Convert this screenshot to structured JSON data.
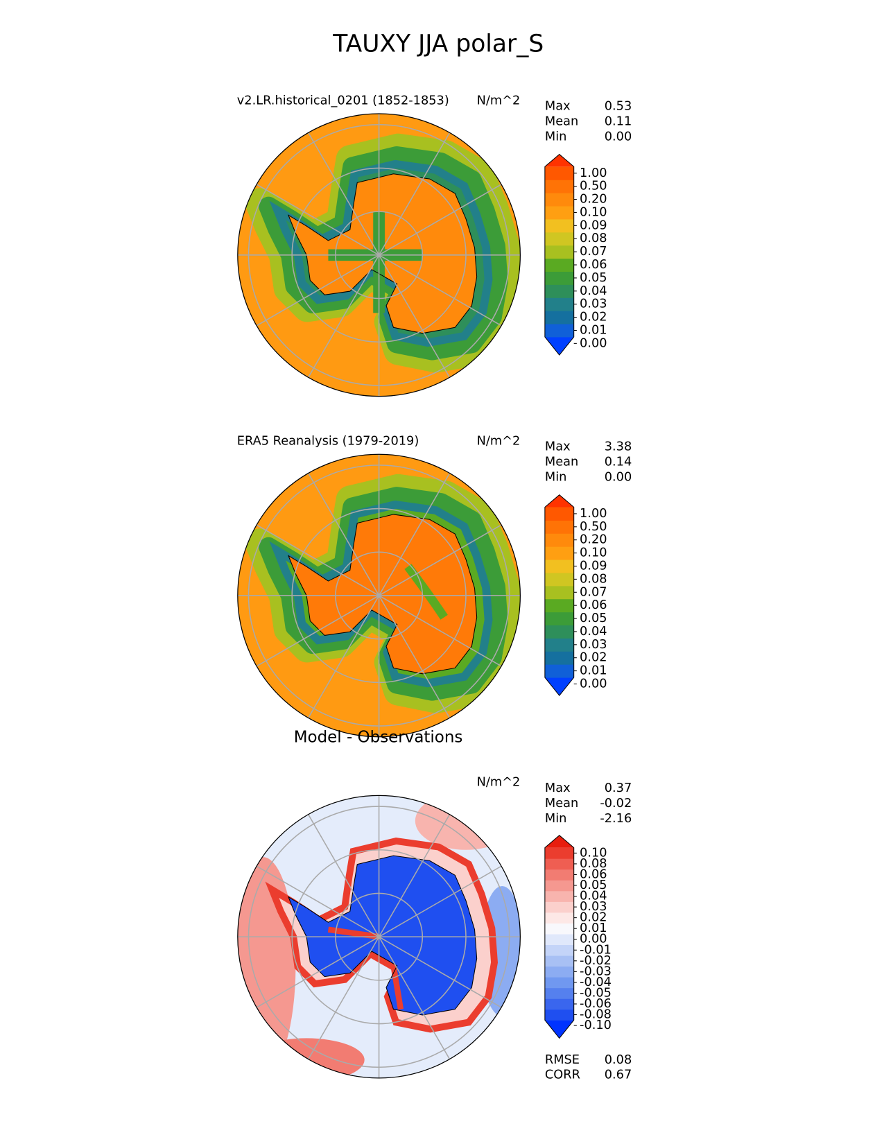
{
  "title": "TAUXY JJA polar_S",
  "panels": [
    {
      "subtitle": "v2.LR.historical_0201 (1852-1853)",
      "units": "N/m^2",
      "stats": [
        {
          "label": "Max",
          "value": "0.53"
        },
        {
          "label": "Mean",
          "value": "0.11"
        },
        {
          "label": "Min",
          "value": "0.00"
        }
      ],
      "colorbar": [
        "1.00",
        "0.50",
        "0.20",
        "0.10",
        "0.09",
        "0.08",
        "0.07",
        "0.06",
        "0.05",
        "0.04",
        "0.03",
        "0.02",
        "0.01",
        "0.00"
      ]
    },
    {
      "subtitle": "ERA5 Reanalysis (1979-2019)",
      "units": "N/m^2",
      "stats": [
        {
          "label": "Max",
          "value": "3.38"
        },
        {
          "label": "Mean",
          "value": "0.14"
        },
        {
          "label": "Min",
          "value": "0.00"
        }
      ],
      "colorbar": [
        "1.00",
        "0.50",
        "0.20",
        "0.10",
        "0.09",
        "0.08",
        "0.07",
        "0.06",
        "0.05",
        "0.04",
        "0.03",
        "0.02",
        "0.01",
        "0.00"
      ]
    },
    {
      "subtitle": "Model - Observations",
      "units": "N/m^2",
      "stats": [
        {
          "label": "Max",
          "value": "0.37"
        },
        {
          "label": "Mean",
          "value": "-0.02"
        },
        {
          "label": "Min",
          "value": "-2.16"
        }
      ],
      "colorbar": [
        "0.10",
        "0.08",
        "0.06",
        "0.05",
        "0.04",
        "0.03",
        "0.02",
        "0.01",
        "0.00",
        "-0.01",
        "-0.02",
        "-0.03",
        "-0.04",
        "-0.05",
        "-0.06",
        "-0.08",
        "-0.10"
      ],
      "metrics": [
        {
          "label": "RMSE",
          "value": "0.08"
        },
        {
          "label": "CORR",
          "value": "0.67"
        }
      ]
    }
  ]
}
